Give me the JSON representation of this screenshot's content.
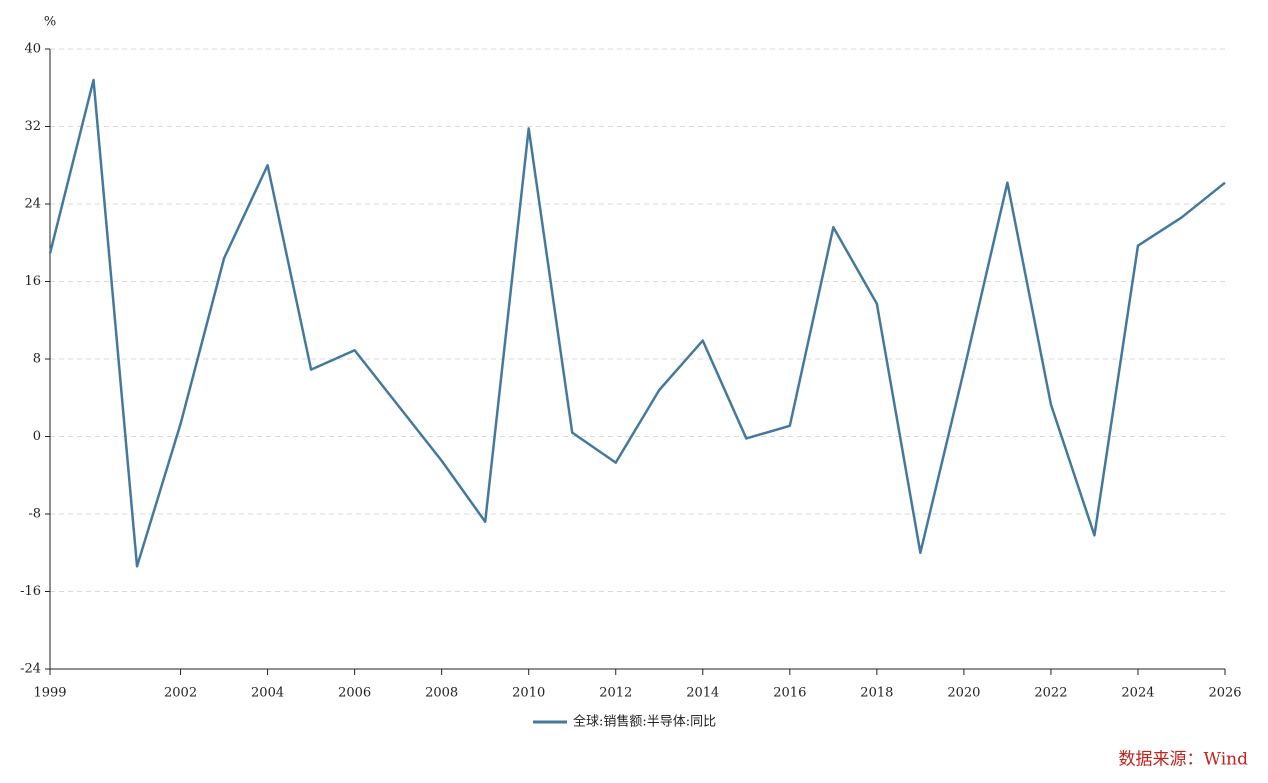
{
  "chart_data": {
    "type": "line",
    "y_unit": "%",
    "source": "数据来源：Wind",
    "x": [
      1999,
      2000,
      2001,
      2002,
      2003,
      2004,
      2005,
      2006,
      2007,
      2008,
      2009,
      2010,
      2011,
      2012,
      2013,
      2014,
      2015,
      2016,
      2017,
      2018,
      2019,
      2020,
      2021,
      2022,
      2023,
      2024,
      2025,
      2026
    ],
    "series": [
      {
        "name": "全球:销售额:半导体:同比",
        "color": "#44799e",
        "values": [
          18.9,
          36.8,
          -13.4,
          1.3,
          18.4,
          28.0,
          6.9,
          8.9,
          3.2,
          -2.5,
          -8.8,
          31.8,
          0.4,
          -2.7,
          4.8,
          9.9,
          -0.2,
          1.1,
          21.6,
          13.7,
          -12.0,
          6.8,
          26.2,
          3.3,
          -10.2,
          19.7,
          22.6,
          26.2
        ]
      }
    ],
    "xlim": [
      1999,
      2026
    ],
    "xticks": [
      1999,
      2002,
      2004,
      2006,
      2008,
      2010,
      2012,
      2014,
      2016,
      2018,
      2020,
      2022,
      2024,
      2026
    ],
    "ylim": [
      -24,
      40
    ],
    "yticks": [
      -24,
      -16,
      -8,
      0,
      8,
      16,
      24,
      32,
      40
    ],
    "grid": true,
    "legend": "bottom"
  }
}
